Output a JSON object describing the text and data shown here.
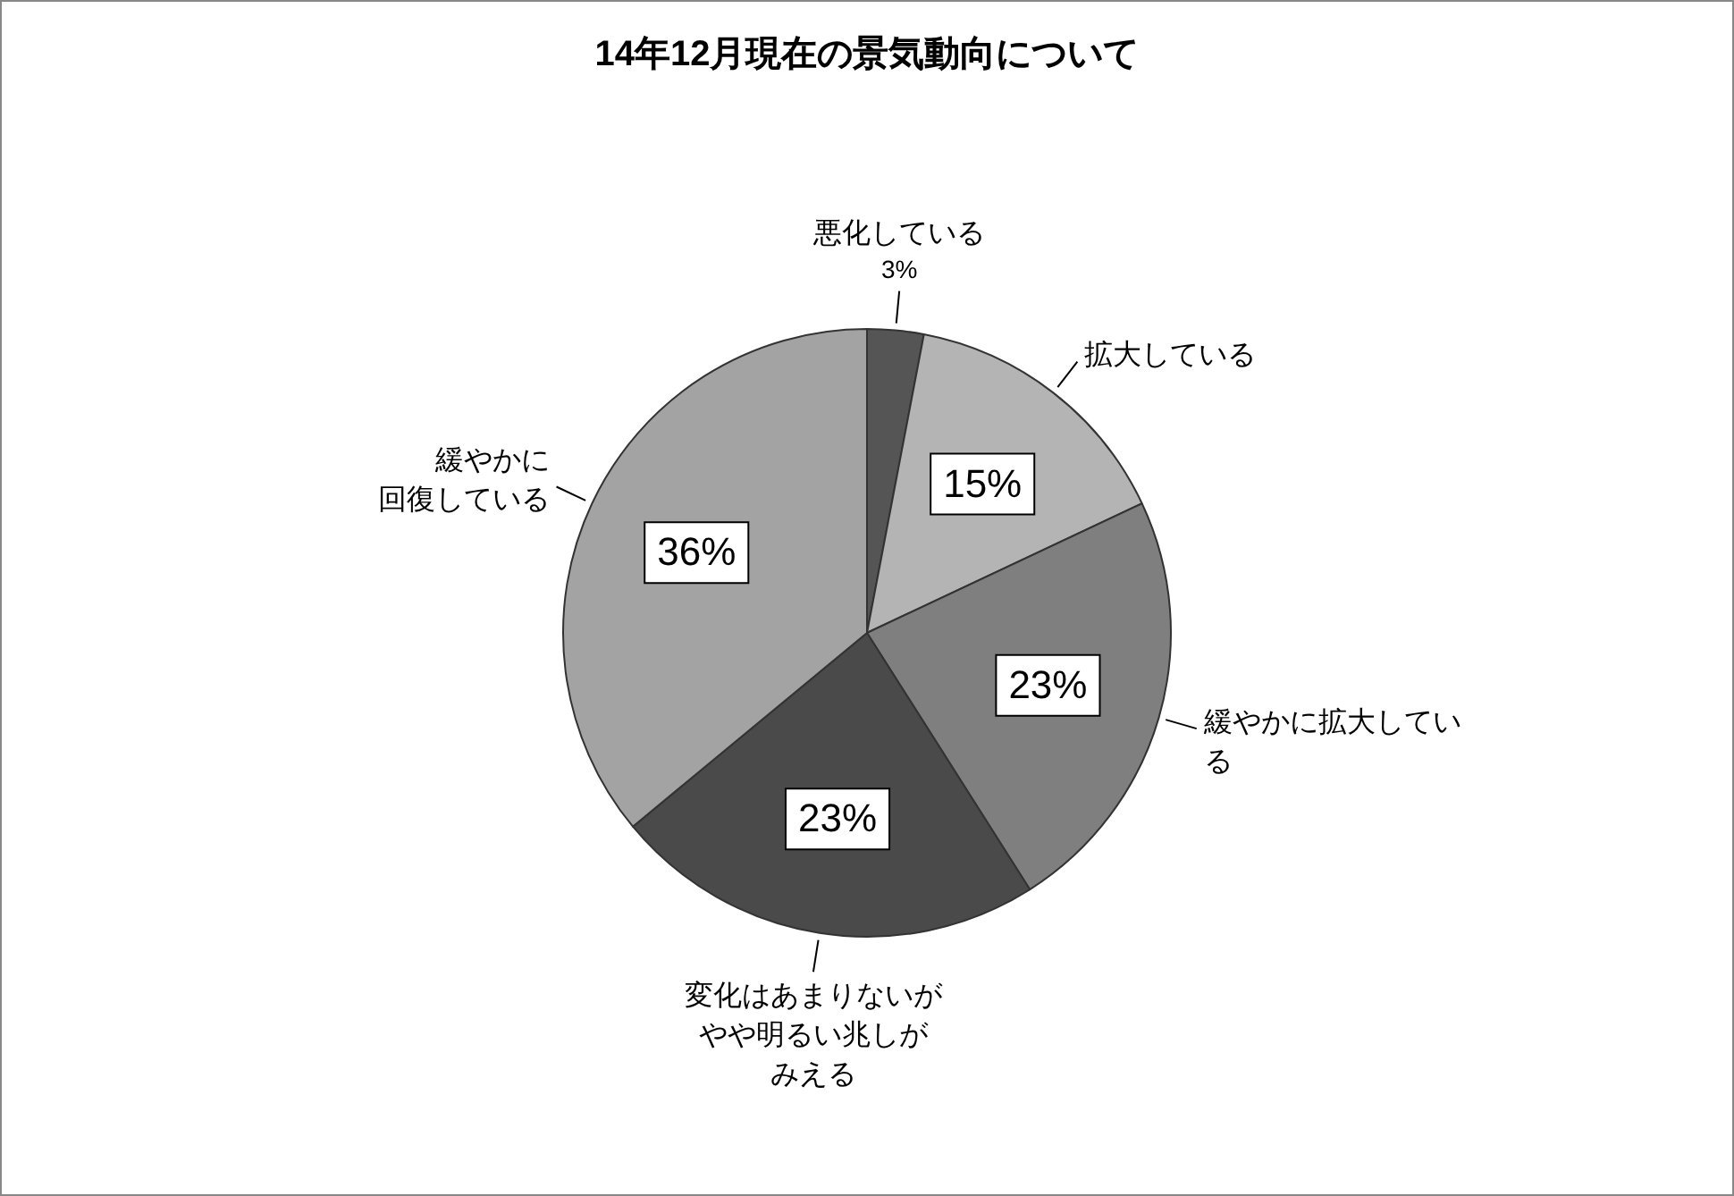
{
  "chart_data": {
    "type": "pie",
    "title": "14年12月現在の景気動向について",
    "categories": [
      "悪化している",
      "拡大している",
      "緩やかに拡大している",
      "変化はあまりないがやや明るい兆しがみえる",
      "緩やかに回復している"
    ],
    "values": [
      3,
      15,
      23,
      23,
      36
    ],
    "value_labels": [
      "3%",
      "15%",
      "23%",
      "23%",
      "36%"
    ],
    "colors": [
      "#555555",
      "#b4b4b4",
      "#7f7f7f",
      "#4a4a4a",
      "#a3a3a3"
    ],
    "legend": false
  }
}
